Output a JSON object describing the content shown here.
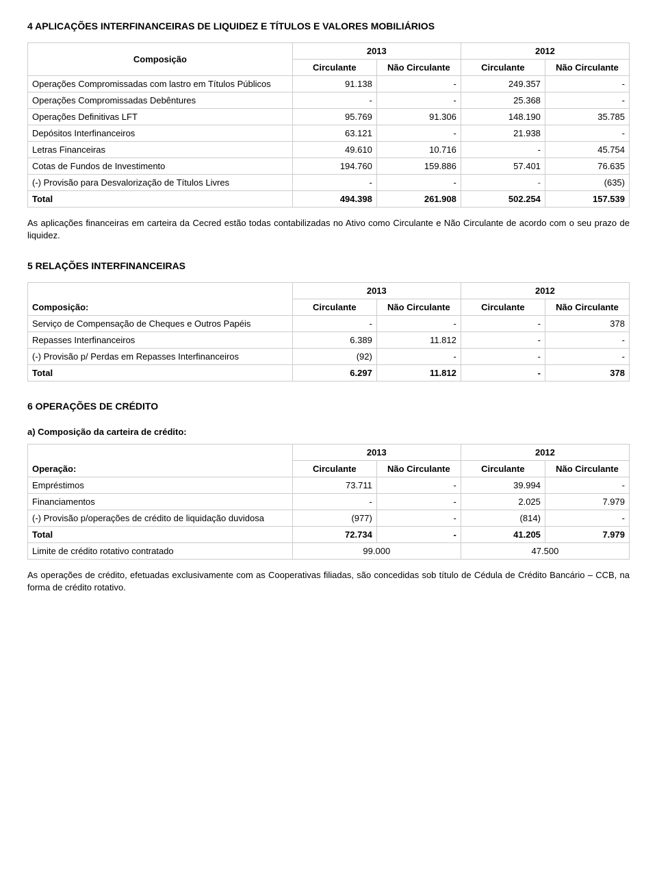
{
  "sec4": {
    "title": "4  APLICAÇÕES INTERFINANCEIRAS DE LIQUIDEZ E TÍTULOS E VALORES MOBILIÁRIOS",
    "head_rowlabel": "Composição",
    "year1": "2013",
    "year2": "2012",
    "sub_c": "Circulante",
    "sub_nc": "Não Circulante",
    "rows": [
      {
        "label": "Operações Compromissadas com lastro em Títulos Públicos",
        "c1": "91.138",
        "nc1": "-",
        "c2": "249.357",
        "nc2": "-"
      },
      {
        "label": "Operações Compromissadas Debêntures",
        "c1": "-",
        "nc1": "-",
        "c2": "25.368",
        "nc2": "-"
      },
      {
        "label": "Operações Definitivas LFT",
        "c1": "95.769",
        "nc1": "91.306",
        "c2": "148.190",
        "nc2": "35.785"
      },
      {
        "label": "Depósitos Interfinanceiros",
        "c1": "63.121",
        "nc1": "-",
        "c2": "21.938",
        "nc2": "-"
      },
      {
        "label": "Letras Financeiras",
        "c1": "49.610",
        "nc1": "10.716",
        "c2": "-",
        "nc2": "45.754"
      },
      {
        "label": "Cotas de Fundos de Investimento",
        "c1": "194.760",
        "nc1": "159.886",
        "c2": "57.401",
        "nc2": "76.635"
      },
      {
        "label": "(-) Provisão para Desvalorização de Títulos Livres",
        "c1": "-",
        "nc1": "-",
        "c2": "-",
        "nc2": "(635)",
        "c2_red": true
      }
    ],
    "total": {
      "label": "Total",
      "c1": "494.398",
      "nc1": "261.908",
      "c2": "502.254",
      "nc2": "157.539"
    },
    "note": "As aplicações financeiras em carteira da Cecred estão todas contabilizadas no Ativo como Circulante e Não Circulante de acordo com o seu prazo de liquidez."
  },
  "sec5": {
    "title": "5 RELAÇÕES INTERFINANCEIRAS",
    "head_rowlabel": "Composição:",
    "year1": "2013",
    "year2": "2012",
    "sub_c": "Circulante",
    "sub_nc": "Não Circulante",
    "rows": [
      {
        "label": "Serviço de Compensação de Cheques e Outros Papéis",
        "c1": "-",
        "nc1": "-",
        "c2": "-",
        "nc2": "378"
      },
      {
        "label": "Repasses Interfinanceiros",
        "c1": "6.389",
        "nc1": "11.812",
        "c2": "-",
        "nc2": "-"
      },
      {
        "label": "(-) Provisão p/ Perdas em Repasses Interfinanceiros",
        "c1": "(92)",
        "nc1": "-",
        "c2": "-",
        "nc2": "-"
      }
    ],
    "total": {
      "label": "Total",
      "c1": "6.297",
      "nc1": "11.812",
      "c2": "-",
      "nc2": "378"
    }
  },
  "sec6": {
    "title": "6 OPERAÇÕES DE CRÉDITO",
    "sub_a": "a)   Composição da carteira de crédito:",
    "head_rowlabel": "Operação:",
    "year1": "2013",
    "year2": "2012",
    "sub_c": "Circulante",
    "sub_nc": "Não Circulante",
    "rows": [
      {
        "label": "Empréstimos",
        "c1": "73.711",
        "nc1": "-",
        "c2": "39.994",
        "nc2": "-"
      },
      {
        "label": "Financiamentos",
        "c1": "-",
        "nc1": "-",
        "c2": "2.025",
        "nc2": "7.979"
      },
      {
        "label": "(-) Provisão p/operações de crédito de liquidação duvidosa",
        "c1": "(977)",
        "nc1": "-",
        "c2": "(814)",
        "nc2": "-"
      }
    ],
    "total": {
      "label": "Total",
      "c1": "72.734",
      "nc1": "-",
      "c2": "41.205",
      "nc2": "7.979"
    },
    "limit_row": {
      "label": "Limite de crédito rotativo contratado",
      "v1": "99.000",
      "v2": "47.500"
    },
    "note": "As operações de crédito, efetuadas exclusivamente com as Cooperativas filiadas, são concedidas sob título de Cédula de Crédito Bancário – CCB, na forma de crédito rotativo."
  }
}
